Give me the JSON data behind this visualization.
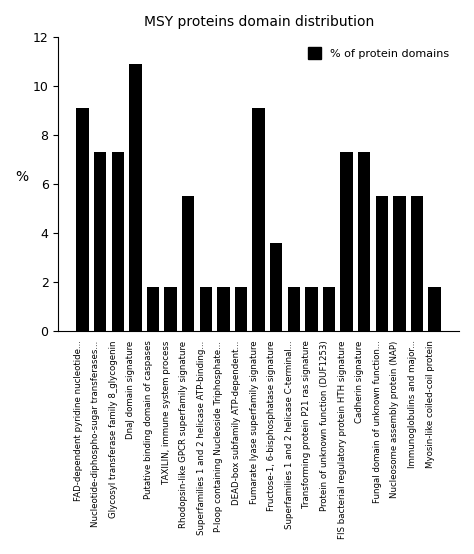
{
  "title": "MSY proteins domain distribution",
  "ylabel": "%",
  "legend_label": "% of protein domains",
  "ylim": [
    0,
    12
  ],
  "yticks": [
    0,
    2,
    4,
    6,
    8,
    10,
    12
  ],
  "categories": [
    "FAD-dependent pyridine nucleotide...",
    "Nucleotide-diphospho-sugar transferases...",
    "Glycosyl transferase family 8_glycogenin",
    "DnaJ domain signature",
    "Putative binding domain of caspases",
    "TAXILIN, immune system process",
    "Rhodopsin-like GPCR superfamily signature",
    "Superfamilies 1 and 2 helicase ATP-binding...",
    "P-loop containing Nucleoside Triphosphate...",
    "DEAD-box subfamily ATP-dependent...",
    "Fumarate lyase superfamily signature",
    "Fructose-1, 6-bisphosphatase signature",
    "Superfamilies 1 and 2 helicase C-terminal...",
    "Transforming protein P21 ras signature",
    "Protein of unknown function (DUF1253)",
    "FIS bacterial regulatory protein HTH signature",
    "Cadherin signature",
    "Fungal domain of unknown function...",
    "Nucleosome assembly protein (NAP)",
    "Immunoglobulins and major...",
    "Myosin-like coiled-coil protein"
  ],
  "values": [
    9.1,
    7.3,
    7.3,
    10.9,
    1.8,
    1.8,
    5.5,
    1.8,
    1.8,
    1.8,
    9.1,
    3.6,
    1.8,
    1.8,
    1.8,
    7.3,
    7.3,
    5.5,
    5.5,
    5.5,
    1.8
  ],
  "bar_color": "#000000",
  "background_color": "#ffffff"
}
